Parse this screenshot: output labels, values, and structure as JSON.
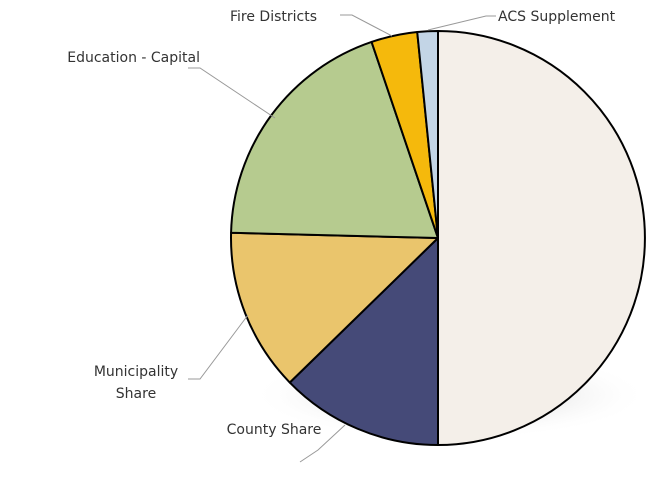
{
  "chart_data": {
    "type": "pie",
    "categories": [
      null,
      "County Share",
      "Municipality Share",
      "Education - Capital",
      "Fire Districts",
      "ACS Supplement"
    ],
    "values": [
      50,
      12.7,
      12.7,
      19.4,
      3.6,
      1.6
    ],
    "colors": [
      "#f4efe9",
      "#454a78",
      "#eac56c",
      "#b6cb8f",
      "#f5b90c",
      "#c3d5e6"
    ]
  }
}
